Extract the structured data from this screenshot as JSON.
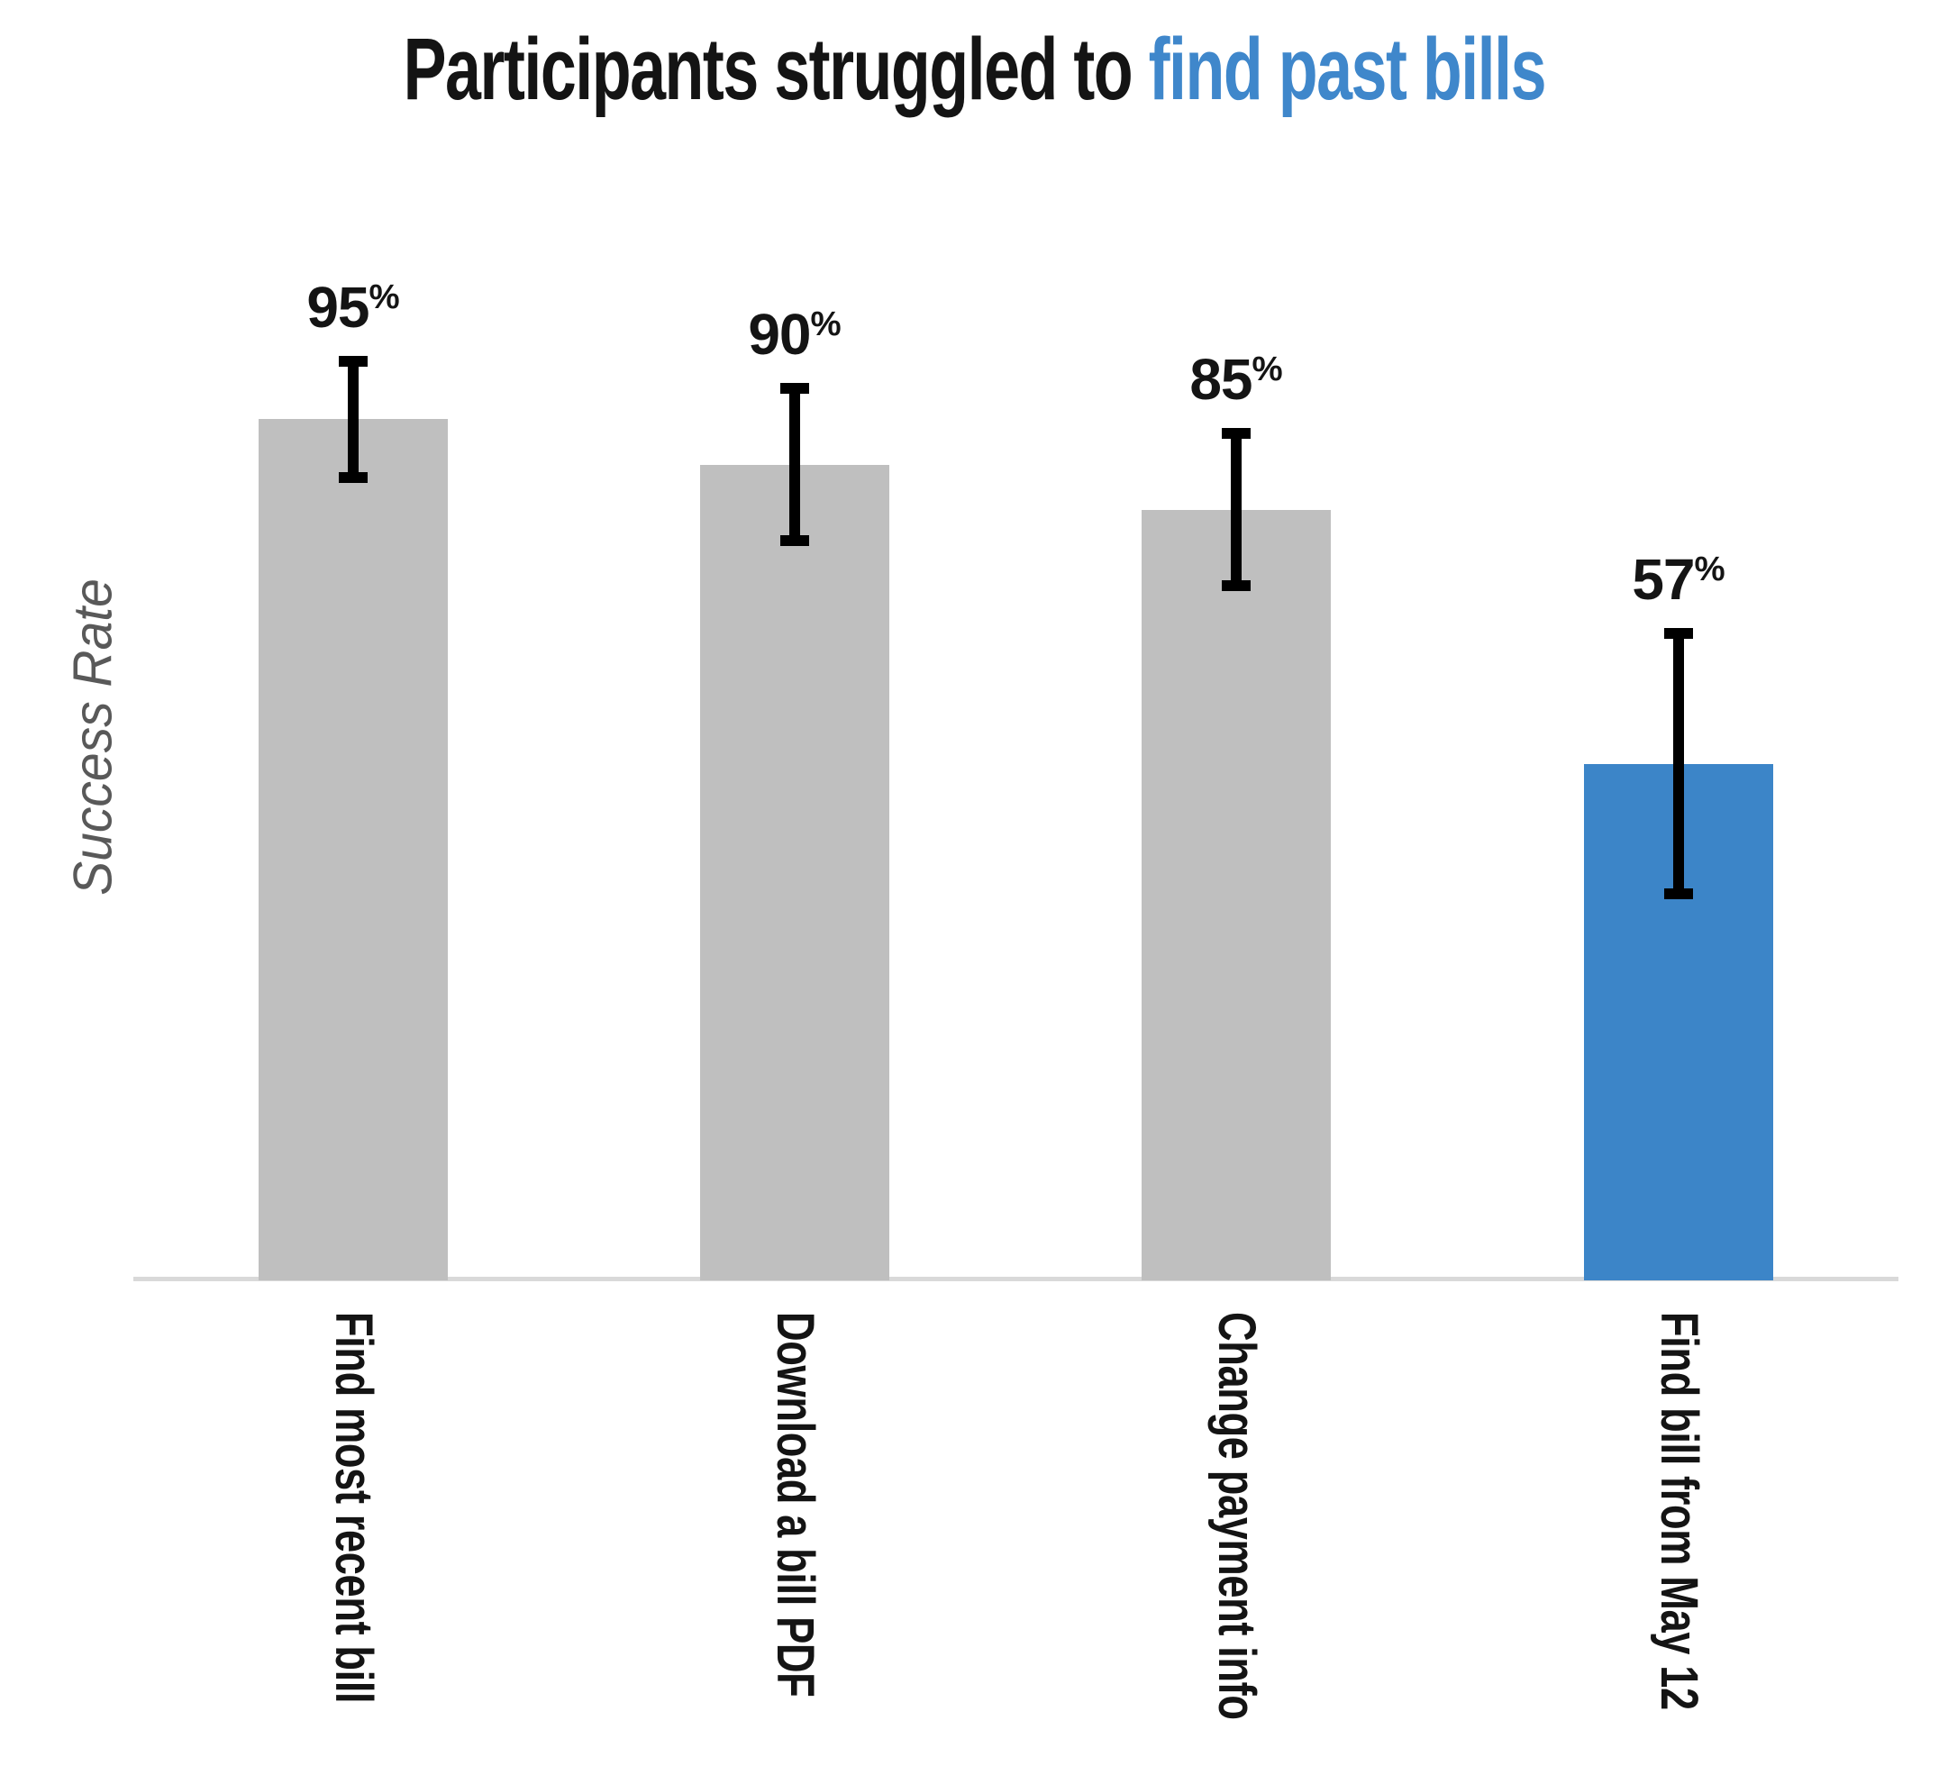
{
  "title": {
    "text_black": "Participants struggled to ",
    "text_blue": "find past bills"
  },
  "y_axis_label": "Success Rate",
  "colors": {
    "bar_gray": "#bfbfbf",
    "bar_blue": "#3c85c8",
    "title_blue": "#3f87cb",
    "axis_line": "#d9d9d9",
    "error_bar": "#000000",
    "y_label_gray": "#595959",
    "text_black": "#141414"
  },
  "chart_data": {
    "type": "bar",
    "title": "Participants struggled to find past bills",
    "title_highlight": "find past bills",
    "xlabel": "",
    "ylabel": "Success Rate",
    "categories": [
      "Find most recent bill",
      "Download a bill PDF",
      "Change payment info",
      "Find bill from May 12"
    ],
    "values": [
      95,
      90,
      85,
      57
    ],
    "value_labels": [
      "95%",
      "90%",
      "85%",
      "57%"
    ],
    "error_plus": [
      7,
      9,
      9,
      15
    ],
    "error_minus": [
      7,
      9,
      9,
      15
    ],
    "highlight_index": 3,
    "ylim": [
      0,
      100
    ],
    "grid": false,
    "legend": false,
    "x_tick_rotation_deg": 90,
    "bar_colors": [
      "#bfbfbf",
      "#bfbfbf",
      "#bfbfbf",
      "#3c85c8"
    ]
  }
}
